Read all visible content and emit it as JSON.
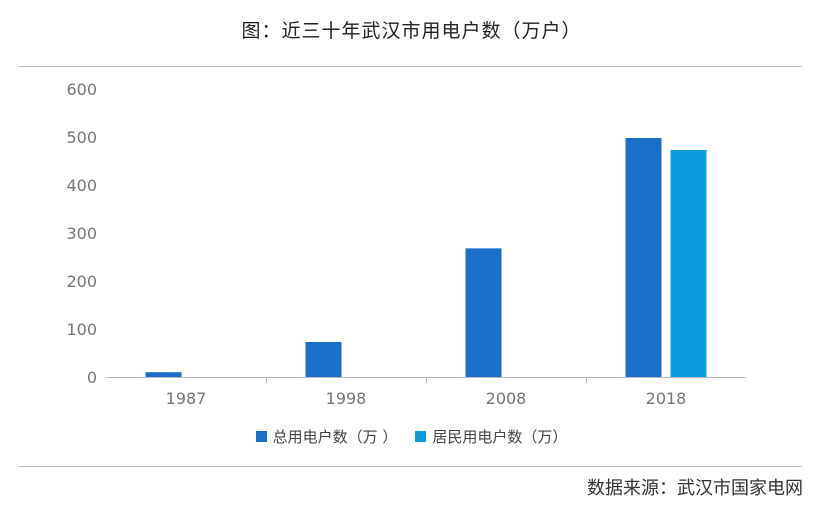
{
  "title": "图：近三十年武汉市用电户数（万户）",
  "source": "数据来源：武汉市国家电网",
  "colors": {
    "total": "#1a70c8",
    "resident": "#0a9ddb",
    "axis": "#bbbbbb",
    "tick_text": "#777777"
  },
  "chart_data": {
    "type": "bar",
    "title": "图：近三十年武汉市用电户数（万户）",
    "xlabel": "",
    "ylabel": "",
    "categories": [
      "1987",
      "1998",
      "2008",
      "2018"
    ],
    "ylim": [
      0,
      600
    ],
    "yticks": [
      0,
      100,
      200,
      300,
      400,
      500,
      600
    ],
    "grid": false,
    "legend_position": "bottom",
    "series": [
      {
        "name": "总用电户数（万 ）",
        "values": [
          10,
          73,
          268,
          498
        ]
      },
      {
        "name": "居民用电户数（万）",
        "values": [
          null,
          null,
          null,
          473
        ]
      }
    ]
  }
}
